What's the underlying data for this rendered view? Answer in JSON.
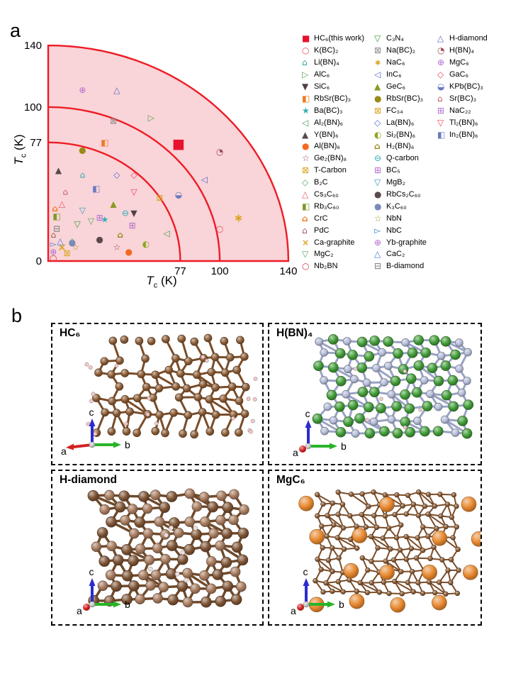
{
  "figure": {
    "panel_a_label": "a",
    "panel_b_label": "b"
  },
  "chart_data": {
    "type": "scatter",
    "title": "",
    "xlabel": "Tc (K)",
    "ylabel": "Tc (K)",
    "axis": {
      "t": "T",
      "sub": "c",
      "unit": " (K)"
    },
    "xlim": [
      0,
      140
    ],
    "ylim": [
      0,
      140
    ],
    "xticks": [
      0,
      77,
      100,
      140
    ],
    "yticks": [
      0,
      77,
      100,
      140
    ],
    "arcs_K": [
      77,
      100,
      140
    ],
    "arc_color": "#ee1c25",
    "fill_color": "#f9d4d8",
    "points": [
      {
        "label": "HC₆(this work)",
        "sym": "■",
        "color": "#e8112d",
        "x": 76,
        "y": 76,
        "size": 19
      },
      {
        "label": "K(BC)₂",
        "sym": "○",
        "color": "#e84b5a",
        "x": 100,
        "y": 21
      },
      {
        "label": "Li(BN)₄",
        "sym": "⌂",
        "color": "#2aa7a7",
        "x": 20,
        "y": 56
      },
      {
        "label": "AlC₆",
        "sym": "▷",
        "color": "#56a556",
        "x": 60,
        "y": 93
      },
      {
        "label": "SiC₆",
        "sym": "▼",
        "color": "#514040",
        "x": 50,
        "y": 31
      },
      {
        "label": "RbSr(BC)₃",
        "sym": "◧",
        "color": "#f07820",
        "x": 33,
        "y": 77
      },
      {
        "label": "Ba(BC)₃",
        "sym": "★",
        "color": "#2ab0b0",
        "x": 33,
        "y": 27
      },
      {
        "label": "Al₂(BN)₆",
        "sym": "◁",
        "color": "#4e9a4e",
        "x": 69,
        "y": 18
      },
      {
        "label": "Y(BN)₆",
        "sym": "▲",
        "color": "#564a4c",
        "x": 6,
        "y": 59
      },
      {
        "label": "Al(BN)₆",
        "sym": "●",
        "color": "#f4691e",
        "x": 47,
        "y": 6
      },
      {
        "label": "Ge₂(BN)₈",
        "sym": "☆",
        "color": "#9a4a52",
        "x": 40,
        "y": 9
      },
      {
        "label": "T-Carbon",
        "sym": "⊠",
        "color": "#d9a41f",
        "x": 11,
        "y": 5
      },
      {
        "label": "B₂C",
        "sym": "◇",
        "color": "#58a858",
        "x": 14,
        "y": 13
      },
      {
        "label": "Cs₃C₆₀",
        "sym": "△",
        "color": "#e85560",
        "x": 8,
        "y": 37
      },
      {
        "label": "Rb₃C₆₀",
        "sym": "◧",
        "color": "#7a9a28",
        "x": 5,
        "y": 29
      },
      {
        "label": "CrC",
        "sym": "⌂",
        "color": "#f07820",
        "x": 4,
        "y": 34,
        "bold": true
      },
      {
        "label": "PdC",
        "sym": "⌂",
        "color": "#9a5a50",
        "x": 3,
        "y": 17
      },
      {
        "label": "Ca-graphite",
        "sym": "×",
        "color": "#d9a41f",
        "x": 8,
        "y": 9,
        "size": 15,
        "bold": true
      },
      {
        "label": "MgC₂",
        "sym": "▽",
        "color": "#58a858",
        "x": 25,
        "y": 26
      },
      {
        "label": "Nb₂BN",
        "sym": "○",
        "color": "#c83a4a",
        "x": 3,
        "y": 2
      },
      {
        "label": "C₃N₄",
        "sym": "▽",
        "color": "#3a9a3a",
        "x": 17,
        "y": 24
      },
      {
        "label": "Na(BC)₂",
        "sym": "⊠",
        "color": "#8a8a8a",
        "x": 38,
        "y": 91
      },
      {
        "label": "NaC₆",
        "sym": "∗",
        "color": "#d9a41f",
        "x": 111,
        "y": 28,
        "size": 16,
        "bold": true
      },
      {
        "label": "InC₆",
        "sym": "◁",
        "color": "#5a6ac8",
        "x": 91,
        "y": 53
      },
      {
        "label": "GeC₆",
        "sym": "▲",
        "color": "#8a9a20",
        "x": 38,
        "y": 37
      },
      {
        "label": "RbSr(BC)₃",
        "sym": "●",
        "color": "#9a8a18",
        "x": 20,
        "y": 72
      },
      {
        "label": "FC₃₄",
        "sym": "⊠",
        "color": "#d9a41f",
        "x": 65,
        "y": 41
      },
      {
        "label": "La(BN)₆",
        "sym": "◇",
        "color": "#4a6ad8",
        "x": 40,
        "y": 56
      },
      {
        "label": "Si₂(BN)₆",
        "sym": "◐",
        "color": "#8aa820",
        "x": 57,
        "y": 11
      },
      {
        "label": "H₂(BN)₆",
        "sym": "⌂",
        "color": "#9a8a18",
        "x": 42,
        "y": 17,
        "bold": true
      },
      {
        "label": "Q-carbon",
        "sym": "⊖",
        "color": "#2aa8b8",
        "x": 45,
        "y": 31
      },
      {
        "label": "BC₅",
        "sym": "⊞",
        "color": "#b06ad0",
        "x": 30,
        "y": 28
      },
      {
        "label": "MgB₂",
        "sym": "▽",
        "color": "#3a9ab8",
        "x": 20,
        "y": 33
      },
      {
        "label": "RbCs₂C₆₀",
        "sym": "●",
        "color": "#5a4a4a",
        "x": 30,
        "y": 14
      },
      {
        "label": "K₃C₆₀",
        "sym": "●",
        "color": "#7a8ab8",
        "x": 14,
        "y": 12
      },
      {
        "label": "NbN",
        "sym": "☆",
        "color": "#a8981a",
        "x": 16,
        "y": 9
      },
      {
        "label": "NbC",
        "sym": "▻",
        "color": "#3a8ac8",
        "x": 3,
        "y": 11
      },
      {
        "label": "Yb-graphite",
        "sym": "⊕",
        "color": "#b06ad0",
        "x": 3,
        "y": 6
      },
      {
        "label": "CaC₂",
        "sym": "△",
        "color": "#4a7ad8",
        "x": 7,
        "y": 13
      },
      {
        "label": "B-diamond",
        "sym": "⊟",
        "color": "#787878",
        "x": 5,
        "y": 21
      },
      {
        "label": "H-diamond",
        "sym": "△",
        "color": "#5a6ac8",
        "x": 40,
        "y": 111
      },
      {
        "label": "H(BN)₄",
        "sym": "◔",
        "color": "#9a4a52",
        "x": 100,
        "y": 71
      },
      {
        "label": "MgC₆",
        "sym": "⊕",
        "color": "#b06ad0",
        "x": 20,
        "y": 111
      },
      {
        "label": "GaC₆",
        "sym": "◇",
        "color": "#e8415a",
        "x": 50,
        "y": 56
      },
      {
        "label": "KPb(BC)₃",
        "sym": "◒",
        "color": "#6a7ac0",
        "x": 76,
        "y": 43
      },
      {
        "label": "Sr(BC)₃",
        "sym": "⌂",
        "color": "#c05a6a",
        "x": 10,
        "y": 45
      },
      {
        "label": "NaC₂₂",
        "sym": "⊞",
        "color": "#b06ad0",
        "x": 49,
        "y": 23
      },
      {
        "label": "Tl₂(BN)₆",
        "sym": "▽",
        "color": "#e8415a",
        "x": 50,
        "y": 45
      },
      {
        "label": "In₂(BN)₆",
        "sym": "◧",
        "color": "#6a7ac0",
        "x": 28,
        "y": 47
      }
    ],
    "legend_columns": [
      20,
      20,
      9
    ]
  },
  "panel_b": {
    "cells": [
      {
        "kind": "hc6",
        "title": "HC₆",
        "colors": {
          "atom": "#8a5a33",
          "bond": "#7a4c28",
          "h": "#f3cdcd"
        }
      },
      {
        "kind": "hbn4",
        "title": "H(BN)₄",
        "colors": {
          "n": "#3f9a35",
          "b": "#b4bcd8",
          "bond": "#9aa3c4",
          "h": "#f0cfcf"
        }
      },
      {
        "kind": "hdiamond",
        "title": "H-diamond",
        "colors": {
          "c1": "#7c5233",
          "c2": "#a5795c",
          "bond": "#6f4a2b",
          "h": "#efe0de"
        }
      },
      {
        "kind": "mgc6",
        "title": "MgC₆",
        "colors": {
          "mg": "#e6872e",
          "c": "#8a5a33",
          "bond": "#7a4c28"
        }
      }
    ],
    "gizmo": {
      "labels": {
        "a": "a",
        "b": "b",
        "c": "c"
      },
      "colors": {
        "a": "#d42020",
        "b": "#28b428",
        "c": "#2b2bd0"
      }
    }
  }
}
